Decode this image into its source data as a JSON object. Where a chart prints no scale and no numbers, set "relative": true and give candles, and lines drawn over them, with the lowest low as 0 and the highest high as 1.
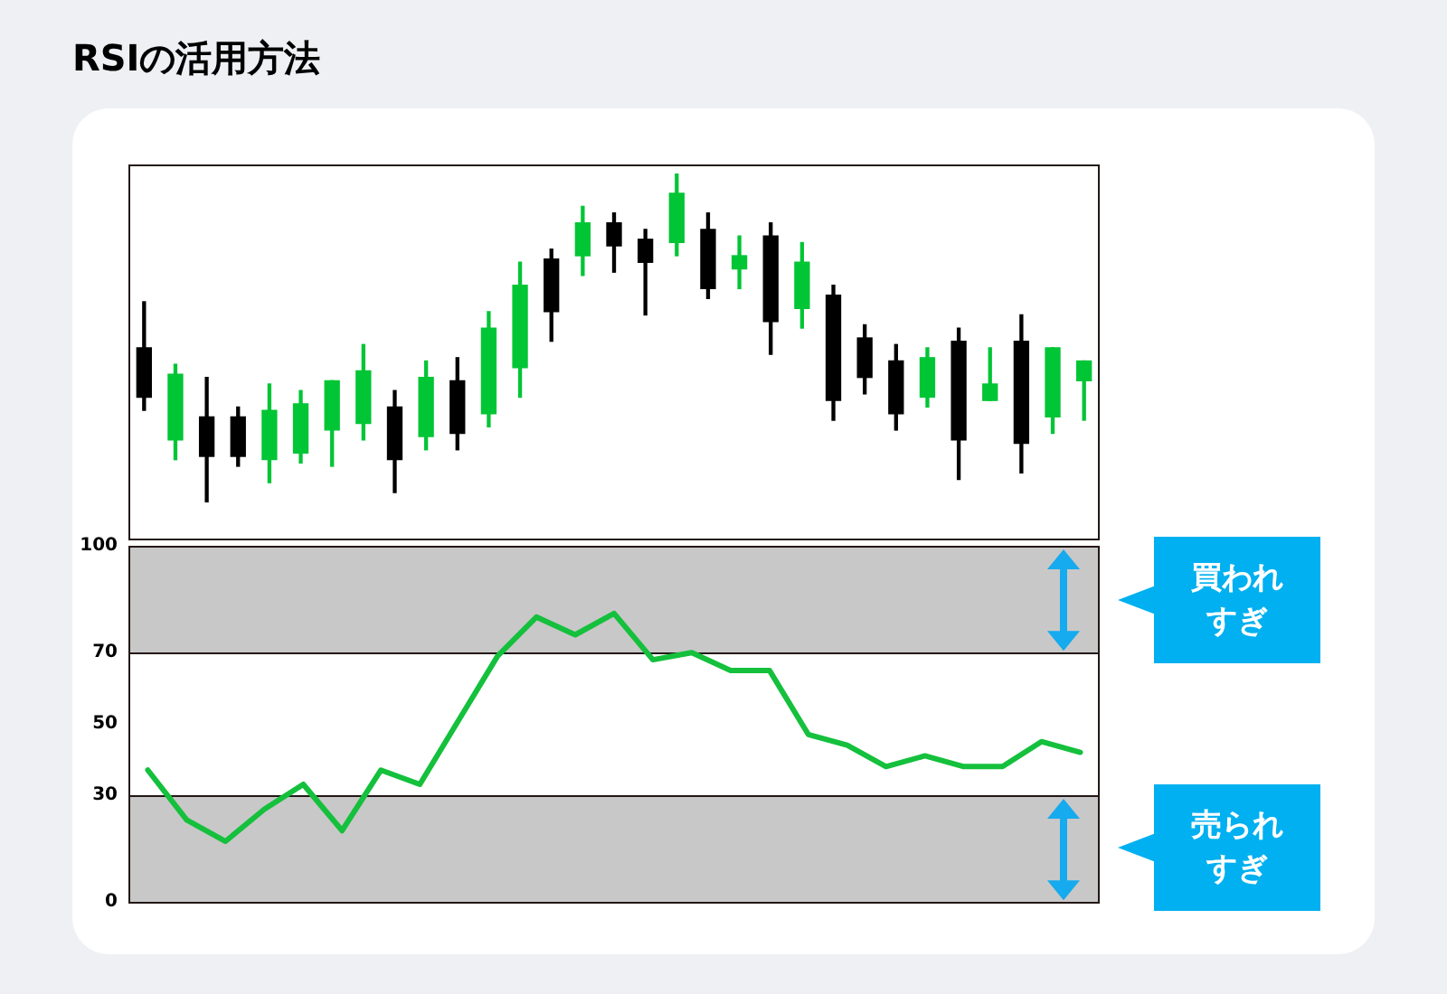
{
  "chart_data": [
    {
      "type": "candlestick",
      "title": "RSIの活用方法",
      "relative": true,
      "tick_labels": false,
      "categories": [
        null,
        null,
        null,
        null,
        null,
        null,
        null,
        null,
        null,
        null,
        null,
        null,
        null,
        null,
        null,
        null,
        null,
        null,
        null,
        null,
        null,
        null,
        null,
        null,
        null,
        null,
        null,
        null,
        null,
        null,
        null
      ],
      "ohlc": [
        [
          0.47,
          0.61,
          0.28,
          0.32
        ],
        [
          0.19,
          0.42,
          0.13,
          0.39
        ],
        [
          0.26,
          0.38,
          0,
          0.14
        ],
        [
          0.26,
          0.29,
          0.11,
          0.14
        ],
        [
          0.13,
          0.36,
          0.06,
          0.28
        ],
        [
          0.15,
          0.34,
          0.12,
          0.3
        ],
        [
          0.22,
          0.37,
          0.11,
          0.37
        ],
        [
          0.24,
          0.48,
          0.19,
          0.4
        ],
        [
          0.29,
          0.34,
          0.03,
          0.13
        ],
        [
          0.2,
          0.43,
          0.16,
          0.38
        ],
        [
          0.37,
          0.44,
          0.16,
          0.21
        ],
        [
          0.27,
          0.58,
          0.23,
          0.53
        ],
        [
          0.41,
          0.73,
          0.32,
          0.66
        ],
        [
          0.74,
          0.77,
          0.49,
          0.58
        ],
        [
          0.75,
          0.9,
          0.69,
          0.85
        ],
        [
          0.85,
          0.88,
          0.7,
          0.78
        ],
        [
          0.8,
          0.83,
          0.57,
          0.73
        ],
        [
          0.79,
          1,
          0.75,
          0.94
        ],
        [
          0.83,
          0.88,
          0.62,
          0.65
        ],
        [
          0.71,
          0.81,
          0.65,
          0.75
        ],
        [
          0.81,
          0.85,
          0.45,
          0.55
        ],
        [
          0.59,
          0.79,
          0.53,
          0.73
        ],
        [
          0.63,
          0.66,
          0.25,
          0.31
        ],
        [
          0.5,
          0.54,
          0.33,
          0.38
        ],
        [
          0.43,
          0.48,
          0.22,
          0.27
        ],
        [
          0.32,
          0.47,
          0.29,
          0.44
        ],
        [
          0.49,
          0.53,
          0.07,
          0.19
        ],
        [
          0.31,
          0.47,
          0.31,
          0.36
        ],
        [
          0.49,
          0.57,
          0.09,
          0.18
        ],
        [
          0.26,
          0.47,
          0.21,
          0.47
        ],
        [
          0.37,
          0.43,
          0.25,
          0.43
        ]
      ],
      "colors": [
        "#000000",
        "#00c535",
        "#000000",
        "#000000",
        "#00c535",
        "#00c535",
        "#00c535",
        "#00c535",
        "#000000",
        "#00c535",
        "#000000",
        "#00c535",
        "#00c535",
        "#000000",
        "#00c535",
        "#000000",
        "#000000",
        "#00c535",
        "#000000",
        "#00c535",
        "#000000",
        "#00c535",
        "#000000",
        "#000000",
        "#000000",
        "#00c535",
        "#000000",
        "#00c535",
        "#000000",
        "#00c535",
        "#00c535"
      ]
    },
    {
      "type": "line",
      "categories": [
        null,
        null,
        null,
        null,
        null,
        null,
        null,
        null,
        null,
        null,
        null,
        null,
        null,
        null,
        null,
        null,
        null,
        null,
        null,
        null,
        null,
        null,
        null,
        null,
        null
      ],
      "values": [
        37,
        23,
        17,
        26,
        33,
        20,
        37,
        33,
        51,
        69,
        80,
        75,
        81,
        68,
        70,
        65,
        65,
        47,
        44,
        38,
        41,
        38,
        38,
        45,
        42
      ],
      "color": "#14c03c",
      "ylim": [
        0,
        100
      ],
      "yticks": [
        0,
        30,
        50,
        70,
        100
      ],
      "tick_labels": "y",
      "marker": "none",
      "line_style": "solid",
      "bands": [
        {
          "axis": "y",
          "from": 70,
          "to": 100,
          "label": "買われすぎ",
          "color": "#c8c8c8"
        },
        {
          "axis": "y",
          "from": 0,
          "to": 30,
          "label": "売られすぎ",
          "color": "#c8c8c8"
        }
      ]
    }
  ]
}
